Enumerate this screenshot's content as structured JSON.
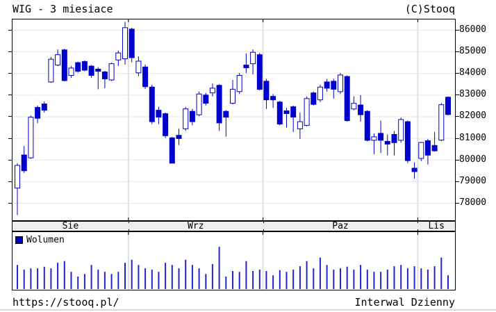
{
  "header": {
    "title": "WIG - 3 miesiace",
    "copyright": "(C)Stooq"
  },
  "footer": {
    "url": "https://stooq.pl/",
    "interval": "Interwal Dzienny"
  },
  "legend": {
    "volume_label": "Wolumen",
    "swatch_color": "#0000cc"
  },
  "colors": {
    "candle": "#0000cc",
    "candle_up_fill": "#ffffff",
    "volume_bar": "#2222cc",
    "grid": "#e7e7e7",
    "month_line": "#e0e0e0",
    "strip_bg": "#ededed",
    "border": "#000000"
  },
  "price_axis": {
    "ticks": [
      86000,
      85000,
      84000,
      83000,
      82000,
      81000,
      80000,
      79000,
      78000
    ]
  },
  "chart_data": {
    "type": "candlestick+volume",
    "title": "WIG - 3 miesiace",
    "interval": "Dzienny",
    "ylim": [
      77300,
      86450
    ],
    "grid": true,
    "legend_position": "top-left-of-volume-panel",
    "months": [
      {
        "label": "Sie",
        "start_index": 0
      },
      {
        "label": "Wrz",
        "start_index": 17
      },
      {
        "label": "Paz",
        "start_index": 37
      },
      {
        "label": "Lis",
        "start_index": 60
      }
    ],
    "candles_ohlc": [
      [
        78700,
        79850,
        77450,
        79750
      ],
      [
        80230,
        80640,
        79400,
        79500
      ],
      [
        80100,
        82050,
        80050,
        81980
      ],
      [
        82430,
        82520,
        81700,
        81930
      ],
      [
        82590,
        82710,
        82190,
        82300
      ],
      [
        83610,
        84760,
        83570,
        84660
      ],
      [
        84390,
        85110,
        84340,
        84870
      ],
      [
        85090,
        85140,
        83640,
        83670
      ],
      [
        83910,
        84340,
        83800,
        84250
      ],
      [
        84500,
        84550,
        84040,
        84100
      ],
      [
        84550,
        84600,
        84100,
        84150
      ],
      [
        84340,
        84390,
        83800,
        83910
      ],
      [
        84200,
        84290,
        83270,
        84100
      ],
      [
        84070,
        84120,
        83320,
        83750
      ],
      [
        83700,
        84500,
        83650,
        84450
      ],
      [
        84625,
        85050,
        84350,
        84950
      ],
      [
        84680,
        86390,
        84410,
        86120
      ],
      [
        86050,
        86120,
        84520,
        84730
      ],
      [
        84030,
        84790,
        83870,
        84570
      ],
      [
        84300,
        84410,
        83280,
        83390
      ],
      [
        83370,
        83480,
        81660,
        81770
      ],
      [
        82300,
        82460,
        81660,
        81980
      ],
      [
        82140,
        82190,
        81020,
        81120
      ],
      [
        81020,
        81070,
        79840,
        79850
      ],
      [
        81140,
        81440,
        80690,
        80990
      ],
      [
        81440,
        82460,
        81340,
        82360
      ],
      [
        82250,
        82360,
        81600,
        81770
      ],
      [
        82090,
        83160,
        82030,
        83050
      ],
      [
        83000,
        83100,
        82520,
        82620
      ],
      [
        83100,
        83530,
        82940,
        83320
      ],
      [
        83450,
        83500,
        81340,
        81710
      ],
      [
        82250,
        82300,
        81070,
        81980
      ],
      [
        82620,
        83700,
        82570,
        83270
      ],
      [
        83160,
        84020,
        83050,
        83910
      ],
      [
        84390,
        84930,
        84020,
        84260
      ],
      [
        84450,
        85110,
        83960,
        84980
      ],
      [
        84870,
        84950,
        83210,
        83270
      ],
      [
        83640,
        83750,
        82360,
        82780
      ],
      [
        82940,
        83050,
        82410,
        82780
      ],
      [
        82680,
        82730,
        81600,
        81660
      ],
      [
        82270,
        82410,
        81500,
        82140
      ],
      [
        82460,
        82520,
        81290,
        81980
      ],
      [
        81440,
        82190,
        80970,
        81770
      ],
      [
        81600,
        82940,
        81550,
        82840
      ],
      [
        83100,
        83160,
        82520,
        82570
      ],
      [
        82780,
        83480,
        82680,
        83370
      ],
      [
        83610,
        83750,
        83160,
        83320
      ],
      [
        83640,
        83750,
        82840,
        83270
      ],
      [
        83160,
        84020,
        83050,
        83930
      ],
      [
        83860,
        83910,
        81770,
        81820
      ],
      [
        82360,
        82940,
        82300,
        82620
      ],
      [
        82540,
        83000,
        81770,
        82090
      ],
      [
        82250,
        82300,
        80860,
        80910
      ],
      [
        80910,
        81230,
        80270,
        81070
      ],
      [
        81230,
        81820,
        80320,
        80910
      ],
      [
        80860,
        81180,
        80210,
        80730
      ],
      [
        81180,
        81340,
        80210,
        80800
      ],
      [
        80910,
        81960,
        80800,
        81870
      ],
      [
        81770,
        81820,
        79860,
        79970
      ],
      [
        79620,
        79890,
        79140,
        79460
      ],
      [
        80070,
        80830,
        79950,
        80810
      ],
      [
        80890,
        80970,
        79790,
        80220
      ],
      [
        80670,
        81300,
        80380,
        80420
      ],
      [
        80920,
        82630,
        80870,
        82555
      ],
      [
        82900,
        82940,
        82060,
        82100
      ]
    ],
    "volume_relative": [
      56,
      45,
      48,
      48,
      52,
      48,
      61,
      65,
      40,
      29,
      35,
      56,
      45,
      40,
      35,
      40,
      61,
      68,
      56,
      48,
      45,
      40,
      61,
      56,
      48,
      68,
      56,
      48,
      35,
      58,
      98,
      29,
      42,
      40,
      65,
      42,
      45,
      42,
      32,
      44,
      40,
      45,
      53,
      65,
      48,
      73,
      56,
      45,
      48,
      52,
      45,
      56,
      45,
      40,
      40,
      45,
      53,
      56,
      48,
      53,
      48,
      45,
      53,
      73,
      32
    ],
    "volume_scale": "relative-percent-of-panel"
  }
}
